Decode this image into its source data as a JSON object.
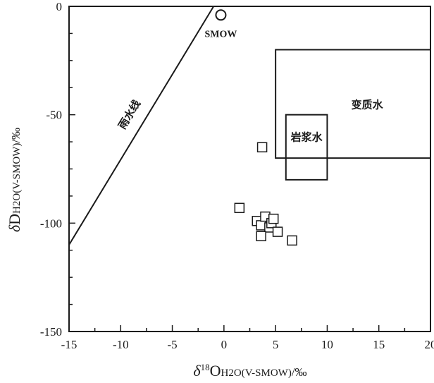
{
  "chart_data": {
    "type": "scatter",
    "xlim": [
      -15,
      20
    ],
    "ylim": [
      -150,
      0
    ],
    "xticks": [
      -15,
      -10,
      -5,
      0,
      5,
      10,
      15,
      20
    ],
    "yticks": [
      0,
      -50,
      -100,
      -150
    ],
    "xtick_labels": [
      "-15",
      "-10",
      "-5",
      "0",
      "5",
      "10",
      "15",
      "20"
    ],
    "ytick_labels": [
      "0",
      "-50",
      "-100",
      "-150"
    ],
    "xlabel": {
      "delta": "δ",
      "sup": "18",
      "main": "O",
      "sub": "H2O(V-SMOW)",
      "unit": "/‰"
    },
    "ylabel": {
      "delta": "δ",
      "main": "D",
      "sub": "H2O(V-SMOW)",
      "unit": "/‰"
    },
    "grid": false,
    "points": [
      {
        "x": 1.5,
        "y": -93
      },
      {
        "x": 3.7,
        "y": -65
      },
      {
        "x": 3.2,
        "y": -99
      },
      {
        "x": 3.6,
        "y": -101
      },
      {
        "x": 4.0,
        "y": -97
      },
      {
        "x": 4.4,
        "y": -102
      },
      {
        "x": 4.6,
        "y": -100
      },
      {
        "x": 4.8,
        "y": -98
      },
      {
        "x": 3.6,
        "y": -106
      },
      {
        "x": 5.2,
        "y": -104
      },
      {
        "x": 6.6,
        "y": -108
      }
    ],
    "reference_point": {
      "label": "SMOW",
      "x": -0.3,
      "y": -4
    },
    "meteoric_line": {
      "label": "雨水线",
      "x1": -15,
      "y1": -110,
      "x2": -1.0,
      "y2": 2
    },
    "regions": [
      {
        "label": "变质水",
        "x1": 5,
        "x2": 20,
        "y1": -70,
        "y2": -20
      },
      {
        "label": "岩浆水",
        "x1": 6,
        "x2": 10,
        "y1": -80,
        "y2": -50
      }
    ]
  }
}
